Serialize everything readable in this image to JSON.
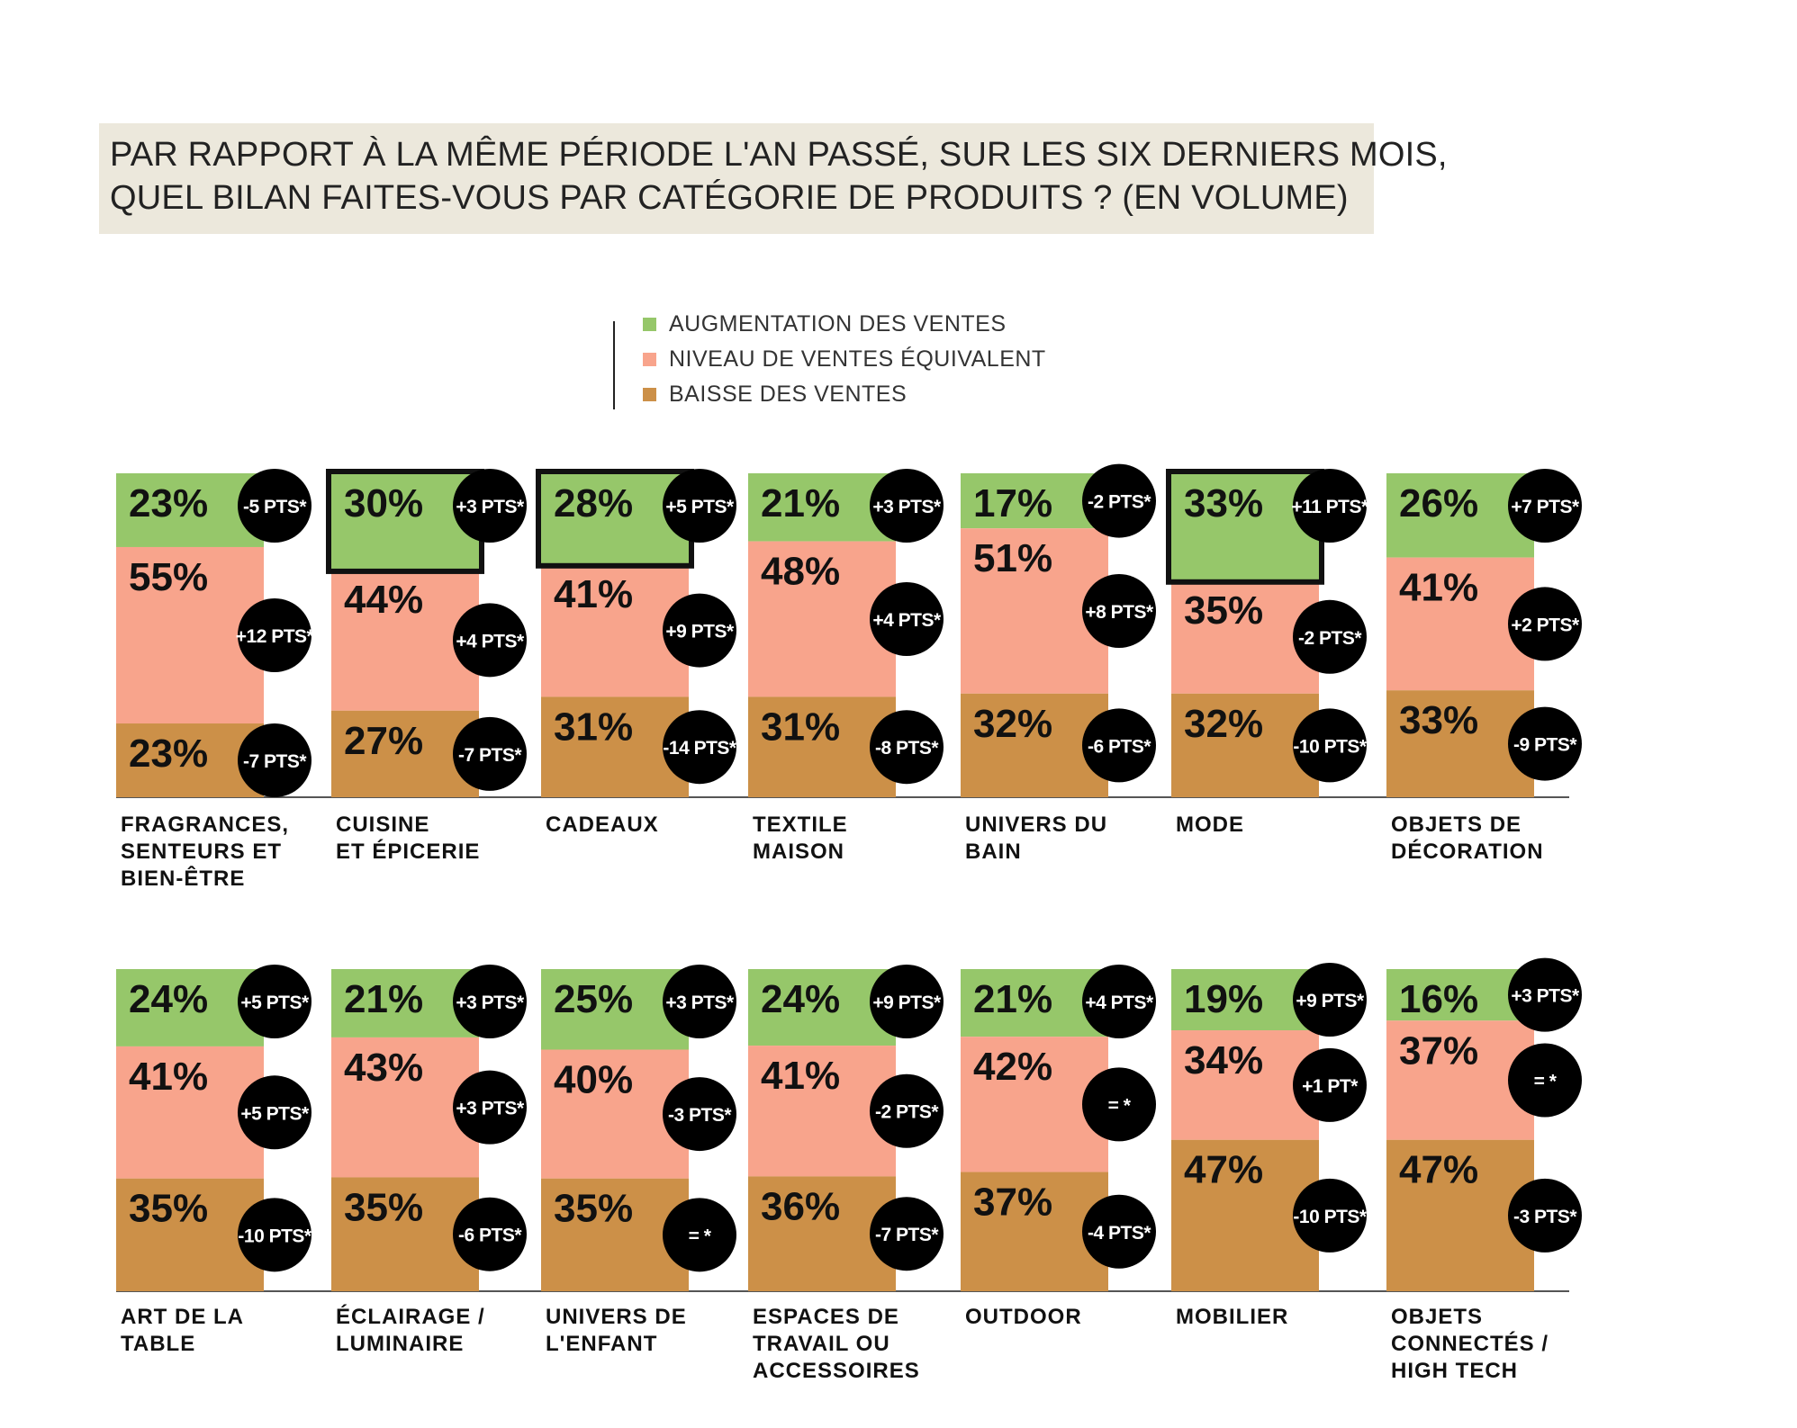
{
  "title": {
    "line1": "PAR RAPPORT À LA MÊME PÉRIODE L'AN PASSÉ, SUR LES SIX DERNIERS MOIS,",
    "line2": "QUEL BILAN FAITES-VOUS PAR CATÉGORIE DE PRODUITS ? (EN VOLUME)"
  },
  "colors": {
    "augmentation": "#96c76a",
    "equivalent": "#f8a48c",
    "baisse": "#cc9048",
    "bubble": "#000000",
    "highlight_border": "#111111",
    "title_bg": "#ece8dc",
    "axis": "#555555"
  },
  "legend": [
    {
      "label": "AUGMENTATION DES VENTES",
      "color": "#96c76a"
    },
    {
      "label": "NIVEAU DE VENTES ÉQUIVALENT",
      "color": "#f8a48c"
    },
    {
      "label": "BAISSE DES VENTES",
      "color": "#cc9048"
    }
  ],
  "chart_data": {
    "type": "bar",
    "stacked": true,
    "percent": true,
    "title": "PAR RAPPORT À LA MÊME PÉRIODE L'AN PASSÉ, SUR LES SIX DERNIERS MOIS, QUEL BILAN FAITES-VOUS PAR CATÉGORIE DE PRODUITS ? (EN VOLUME)",
    "series_names": [
      "AUGMENTATION DES VENTES",
      "NIVEAU DE VENTES ÉQUIVALENT",
      "BAISSE DES VENTES"
    ],
    "ylim": [
      0,
      100
    ],
    "rows": [
      {
        "categories": [
          {
            "label": [
              "FRAGRANCES,",
              "SENTEURS ET",
              "BIEN-ÊTRE"
            ],
            "values": [
              23,
              55,
              23
            ],
            "labels": [
              "23%",
              "55%",
              "23%"
            ],
            "deltas": [
              "-5 PTS*",
              "+12 PTS*",
              "-7 PTS*"
            ],
            "highlight": false
          },
          {
            "label": [
              "CUISINE",
              "ET ÉPICERIE"
            ],
            "values": [
              30,
              44,
              27
            ],
            "labels": [
              "30%",
              "44%",
              "27%"
            ],
            "deltas": [
              "+3 PTS*",
              "+4 PTS*",
              "-7 PTS*"
            ],
            "highlight": true
          },
          {
            "label": [
              "CADEAUX"
            ],
            "values": [
              28,
              41,
              31
            ],
            "labels": [
              "28%",
              "41%",
              "31%"
            ],
            "deltas": [
              "+5 PTS*",
              "+9 PTS*",
              "-14 PTS*"
            ],
            "highlight": true
          },
          {
            "label": [
              "TEXTILE",
              "MAISON"
            ],
            "values": [
              21,
              48,
              31
            ],
            "labels": [
              "21%",
              "48%",
              "31%"
            ],
            "deltas": [
              "+3 PTS*",
              "+4 PTS*",
              "-8 PTS*"
            ],
            "highlight": false
          },
          {
            "label": [
              "UNIVERS DU",
              "BAIN"
            ],
            "values": [
              17,
              51,
              32
            ],
            "labels": [
              "17%",
              "51%",
              "32%"
            ],
            "deltas": [
              "-2 PTS*",
              "+8 PTS*",
              "-6 PTS*"
            ],
            "highlight": false
          },
          {
            "label": [
              "MODE"
            ],
            "values": [
              33,
              35,
              32
            ],
            "labels": [
              "33%",
              "35%",
              "32%"
            ],
            "deltas": [
              "+11 PTS*",
              "-2 PTS*",
              "-10 PTS*"
            ],
            "highlight": true
          },
          {
            "label": [
              "OBJETS DE",
              "DÉCORATION"
            ],
            "values": [
              26,
              41,
              33
            ],
            "labels": [
              "26%",
              "41%",
              "33%"
            ],
            "deltas": [
              "+7 PTS*",
              "+2 PTS*",
              "-9 PTS*"
            ],
            "highlight": false
          }
        ]
      },
      {
        "categories": [
          {
            "label": [
              "ART DE LA",
              "TABLE"
            ],
            "values": [
              24,
              41,
              35
            ],
            "labels": [
              "24%",
              "41%",
              "35%"
            ],
            "deltas": [
              "+5 PTS*",
              "+5 PTS*",
              "-10 PTS*"
            ],
            "highlight": false
          },
          {
            "label": [
              "ÉCLAIRAGE /",
              "LUMINAIRE"
            ],
            "values": [
              21,
              43,
              35
            ],
            "labels": [
              "21%",
              "43%",
              "35%"
            ],
            "deltas": [
              "+3 PTS*",
              "+3 PTS*",
              "-6 PTS*"
            ],
            "highlight": false
          },
          {
            "label": [
              "UNIVERS DE",
              "L'ENFANT"
            ],
            "values": [
              25,
              40,
              35
            ],
            "labels": [
              "25%",
              "40%",
              "35%"
            ],
            "deltas": [
              "+3 PTS*",
              "-3 PTS*",
              "= *"
            ],
            "highlight": false
          },
          {
            "label": [
              "ESPACES DE",
              "TRAVAIL OU",
              "ACCESSOIRES"
            ],
            "values": [
              24,
              41,
              36
            ],
            "labels": [
              "24%",
              "41%",
              "36%"
            ],
            "deltas": [
              "+9 PTS*",
              "-2 PTS*",
              "-7 PTS*"
            ],
            "highlight": false
          },
          {
            "label": [
              "OUTDOOR"
            ],
            "values": [
              21,
              42,
              37
            ],
            "labels": [
              "21%",
              "42%",
              "37%"
            ],
            "deltas": [
              "+4 PTS*",
              "= *",
              "-4 PTS*"
            ],
            "highlight": false
          },
          {
            "label": [
              "MOBILIER"
            ],
            "values": [
              19,
              34,
              47
            ],
            "labels": [
              "19%",
              "34%",
              "47%"
            ],
            "deltas": [
              "+9 PTS*",
              "+1 PT*",
              "-10 PTS*"
            ],
            "highlight": false
          },
          {
            "label": [
              "OBJETS",
              "CONNECTÉS /",
              "HIGH TECH"
            ],
            "values": [
              16,
              37,
              47
            ],
            "labels": [
              "16%",
              "37%",
              "47%"
            ],
            "deltas": [
              "+3 PTS*",
              "= *",
              "-3 PTS*"
            ],
            "highlight": false
          }
        ]
      }
    ]
  }
}
